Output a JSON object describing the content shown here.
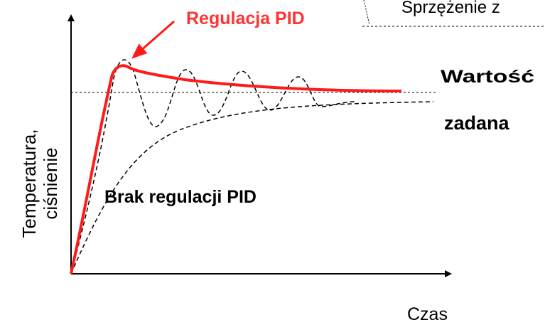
{
  "labels": {
    "feedback": "Sprzężenie z",
    "pid": "Regulacja PID",
    "setpoint_line1": "Wartość",
    "setpoint_line2": "zadana",
    "no_pid": "Brak regulacji PID",
    "y_axis_line1": "Temperatura,",
    "y_axis_line2": "ciśnienie",
    "x_axis": "Czas"
  }
}
